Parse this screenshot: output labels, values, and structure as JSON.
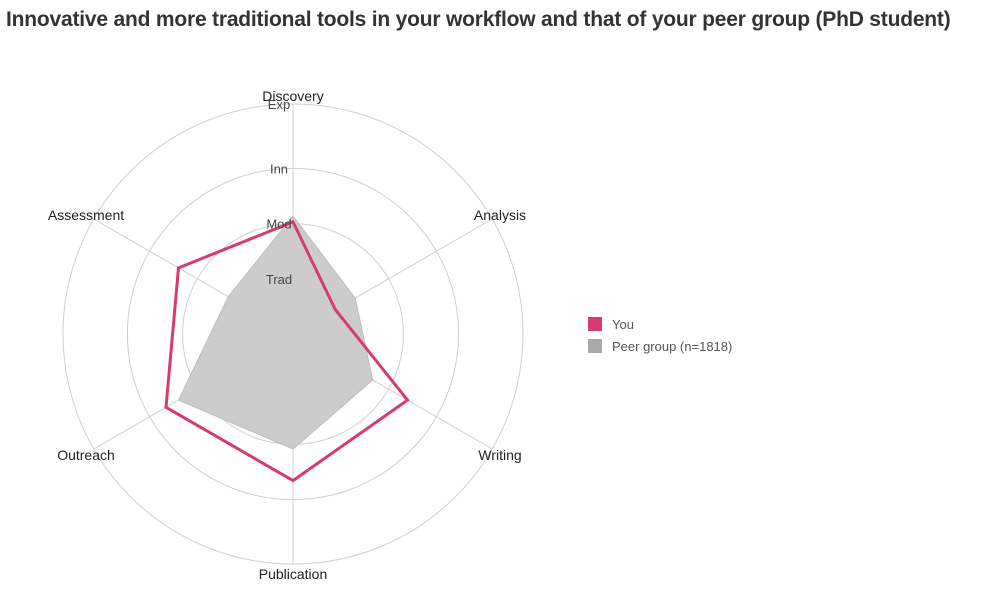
{
  "title": "Innovative and more traditional tools in your workflow and that of your peer group (PhD student)",
  "chart_data": {
    "type": "radar",
    "axes": [
      "Discovery",
      "Analysis",
      "Writing",
      "Publication",
      "Outreach",
      "Assessment"
    ],
    "scale_levels": [
      "Trad",
      "Mod",
      "Inn",
      "Exp"
    ],
    "range": [
      0,
      4
    ],
    "series": [
      {
        "name": "You",
        "values": [
          1.95,
          0.85,
          2.3,
          2.55,
          2.55,
          2.3
        ],
        "color": "#d63a73",
        "style": "outline"
      },
      {
        "name": "Peer group (n=1818)",
        "values": [
          2.05,
          1.25,
          1.6,
          2.0,
          2.3,
          1.3
        ],
        "color": "#c9c9c9",
        "style": "fill"
      }
    ],
    "legend_position": "right",
    "grid": true
  },
  "legend": {
    "items": [
      {
        "label": "You",
        "color": "#d63a73"
      },
      {
        "label": "Peer group (n=1818)",
        "color": "#a9a9a9"
      }
    ]
  }
}
